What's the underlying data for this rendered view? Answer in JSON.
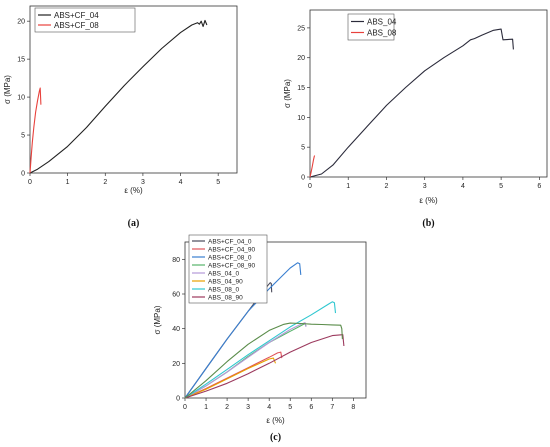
{
  "chart_data": [
    {
      "id": "a",
      "panel_label": "(a)",
      "type": "line",
      "xlabel": "ε (%)",
      "ylabel": "σ (MPa)",
      "xlim": [
        0,
        5.5
      ],
      "ylim": [
        0,
        22
      ],
      "xticks": [
        0,
        1,
        2,
        3,
        4,
        5
      ],
      "yticks": [
        0,
        5,
        10,
        15,
        20
      ],
      "legend_position": "top-left",
      "series": [
        {
          "name": "ABS+CF_04",
          "color": "#222222",
          "x": [
            0,
            0.2,
            0.5,
            1.0,
            1.5,
            2.0,
            2.5,
            3.0,
            3.5,
            4.0,
            4.3,
            4.45,
            4.5,
            4.55,
            4.6,
            4.65,
            4.7
          ],
          "y": [
            0,
            0.5,
            1.5,
            3.5,
            6.0,
            8.8,
            11.5,
            14.0,
            16.4,
            18.5,
            19.5,
            19.8,
            19.6,
            20.0,
            19.3,
            20.1,
            19.5
          ]
        },
        {
          "name": "ABS+CF_08",
          "color": "#e8413c",
          "x": [
            0,
            0.03,
            0.06,
            0.1,
            0.15,
            0.2,
            0.25,
            0.27,
            0.29
          ],
          "y": [
            0,
            2.0,
            4.0,
            6.0,
            8.0,
            9.5,
            10.8,
            11.2,
            9.0
          ]
        }
      ]
    },
    {
      "id": "b",
      "panel_label": "(b)",
      "type": "line",
      "xlabel": "ε (%)",
      "ylabel": "σ (MPa)",
      "xlim": [
        0,
        6.2
      ],
      "ylim": [
        0,
        28
      ],
      "xticks": [
        0,
        1,
        2,
        3,
        4,
        5,
        6
      ],
      "yticks": [
        0,
        5,
        10,
        15,
        20,
        25
      ],
      "legend_position": "top-left",
      "series": [
        {
          "name": "ABS_04",
          "color": "#2b2b3b",
          "x": [
            0,
            0.3,
            0.6,
            1.0,
            1.5,
            2.0,
            2.5,
            3.0,
            3.5,
            4.0,
            4.2,
            4.3,
            4.5,
            4.8,
            5.0,
            5.05,
            5.3,
            5.32
          ],
          "y": [
            0,
            0.5,
            2.0,
            5.0,
            8.5,
            12.0,
            15.0,
            17.8,
            20.0,
            22.0,
            23.0,
            23.2,
            23.8,
            24.6,
            24.8,
            23.0,
            23.1,
            21.4
          ]
        },
        {
          "name": "ABS_08",
          "color": "#e8413c",
          "x": [
            0,
            0.03,
            0.06,
            0.09,
            0.11,
            0.12
          ],
          "y": [
            0,
            0.8,
            1.8,
            2.8,
            3.4,
            3.6
          ]
        }
      ]
    },
    {
      "id": "c",
      "panel_label": "(c)",
      "type": "line",
      "xlabel": "ε (%)",
      "ylabel": "σ (MPa)",
      "xlim": [
        0,
        8.6
      ],
      "ylim": [
        0,
        90
      ],
      "xticks": [
        0,
        1,
        2,
        3,
        4,
        5,
        6,
        7,
        8
      ],
      "yticks": [
        0,
        20,
        40,
        60,
        80
      ],
      "legend_position": "top-left",
      "series": [
        {
          "name": "ABS+CF_04_0",
          "color": "#4a4a5a",
          "x": [
            0,
            1,
            2,
            3,
            3.8,
            4.05,
            4.1,
            4.12
          ],
          "y": [
            0,
            17,
            34,
            50,
            63,
            66.5,
            66.0,
            61.0
          ]
        },
        {
          "name": "ABS+CF_04_90",
          "color": "#e0545a",
          "x": [
            0,
            1,
            2,
            3,
            4,
            4.4,
            4.55,
            4.6
          ],
          "y": [
            0,
            5.5,
            11.5,
            17.5,
            23.5,
            26.0,
            26.5,
            23.0
          ]
        },
        {
          "name": "ABS+CF_08_0",
          "color": "#3a7fd0",
          "x": [
            0,
            1,
            2,
            3,
            4,
            4.5,
            5.0,
            5.35,
            5.45,
            5.5
          ],
          "y": [
            0,
            17,
            34,
            50,
            63,
            69,
            75,
            78,
            77.5,
            71.0
          ]
        },
        {
          "name": "ABS+CF_08_90",
          "color": "#56b46a",
          "x": [
            0,
            1,
            2,
            3,
            4,
            5,
            5.4,
            5.7,
            5.75
          ],
          "y": [
            0,
            7,
            15,
            24,
            32,
            38.5,
            41.0,
            43.0,
            41.5
          ]
        },
        {
          "name": "ABS_04_0",
          "color": "#b49ad8",
          "x": [
            0,
            1,
            2,
            3,
            4,
            5,
            5.5,
            5.7,
            5.75
          ],
          "y": [
            0,
            7,
            15,
            23.5,
            32,
            39.5,
            42.5,
            43.5,
            41.0
          ]
        },
        {
          "name": "ABS_04_90",
          "color": "#e8a100",
          "x": [
            0,
            1,
            2,
            3,
            4,
            4.2,
            4.3
          ],
          "y": [
            0,
            5,
            11,
            17,
            22.5,
            23.0,
            20.0
          ]
        },
        {
          "name": "ABS_08_0",
          "color": "#2fc7d0",
          "x": [
            0,
            1,
            2,
            3,
            4,
            5,
            6,
            6.8,
            7.0,
            7.1,
            7.15
          ],
          "y": [
            0,
            8,
            16.5,
            25,
            33,
            41,
            48,
            54,
            55.5,
            55.0,
            49.0
          ]
        },
        {
          "name": "ABS_08_90",
          "color": "#9c3a5e",
          "x": [
            0,
            1,
            2,
            3,
            4,
            5,
            6,
            7,
            7.5,
            7.55
          ],
          "y": [
            0,
            4,
            8.5,
            14,
            20,
            26.5,
            32,
            36,
            36.5,
            30.0
          ]
        },
        {
          "name": "",
          "color": "#5a8c4a",
          "x": [
            0,
            1,
            2,
            3,
            4,
            4.7,
            5.0,
            5.5,
            6.0,
            6.5,
            7.0,
            7.4,
            7.45,
            7.48
          ],
          "y": [
            0,
            10,
            21,
            31,
            39,
            42.5,
            43.2,
            43.0,
            42.6,
            42.4,
            42.2,
            42.0,
            40.0,
            34.0
          ]
        }
      ]
    }
  ]
}
